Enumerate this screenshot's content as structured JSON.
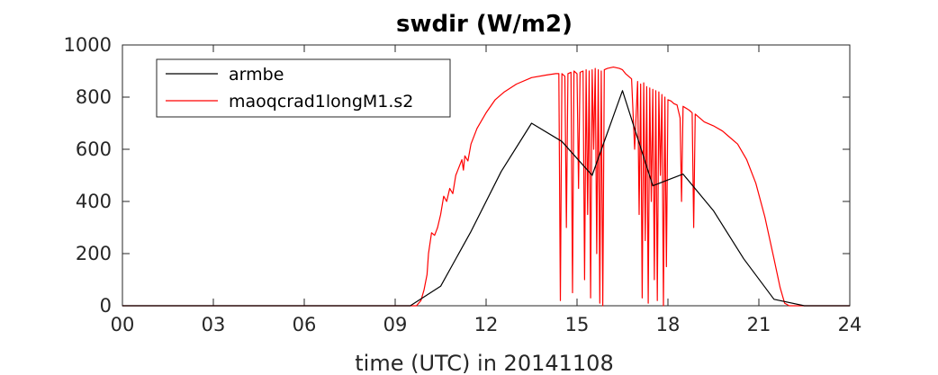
{
  "chart_data": {
    "type": "line",
    "title": "swdir  (W/m2)",
    "xlabel": "time (UTC) in 20141108",
    "ylabel": "",
    "xlim": [
      0,
      24
    ],
    "ylim": [
      0,
      1000
    ],
    "x_ticks": [
      0,
      3,
      6,
      9,
      12,
      15,
      18,
      21,
      24
    ],
    "x_tick_labels": [
      "00",
      "03",
      "06",
      "09",
      "12",
      "15",
      "18",
      "21",
      "24"
    ],
    "y_ticks": [
      0,
      200,
      400,
      600,
      800,
      1000
    ],
    "y_tick_labels": [
      "0",
      "200",
      "400",
      "600",
      "800",
      "1000"
    ],
    "grid": false,
    "legend_position": "top-left",
    "series": [
      {
        "name": "armbe",
        "color": "#000000",
        "points": [
          [
            0,
            0
          ],
          [
            1,
            0
          ],
          [
            2,
            0
          ],
          [
            3,
            0
          ],
          [
            4,
            0
          ],
          [
            5,
            0
          ],
          [
            6,
            0
          ],
          [
            7,
            0
          ],
          [
            8,
            0
          ],
          [
            9,
            0
          ],
          [
            9.5,
            0
          ],
          [
            10.5,
            75
          ],
          [
            11.5,
            285
          ],
          [
            12.5,
            515
          ],
          [
            13.5,
            700
          ],
          [
            14.5,
            630
          ],
          [
            15.5,
            500
          ],
          [
            16.5,
            825
          ],
          [
            17.5,
            460
          ],
          [
            18.5,
            505
          ],
          [
            19.5,
            365
          ],
          [
            20.5,
            180
          ],
          [
            21.5,
            25
          ],
          [
            22.5,
            0
          ],
          [
            23.5,
            0
          ],
          [
            24,
            0
          ]
        ]
      },
      {
        "name": "maoqcrad1longM1.s2",
        "color": "#ff0000",
        "points": [
          [
            0,
            0
          ],
          [
            9.7,
            0
          ],
          [
            9.85,
            20
          ],
          [
            9.95,
            60
          ],
          [
            10.05,
            120
          ],
          [
            10.1,
            200
          ],
          [
            10.2,
            280
          ],
          [
            10.3,
            270
          ],
          [
            10.4,
            300
          ],
          [
            10.5,
            350
          ],
          [
            10.6,
            420
          ],
          [
            10.7,
            400
          ],
          [
            10.8,
            450
          ],
          [
            10.9,
            430
          ],
          [
            11.0,
            500
          ],
          [
            11.1,
            530
          ],
          [
            11.2,
            560
          ],
          [
            11.25,
            520
          ],
          [
            11.3,
            575
          ],
          [
            11.4,
            555
          ],
          [
            11.5,
            620
          ],
          [
            11.7,
            680
          ],
          [
            12.0,
            740
          ],
          [
            12.3,
            790
          ],
          [
            12.6,
            820
          ],
          [
            13.0,
            850
          ],
          [
            13.5,
            875
          ],
          [
            14.0,
            885
          ],
          [
            14.3,
            890
          ],
          [
            14.4,
            890
          ],
          [
            14.45,
            20
          ],
          [
            14.5,
            890
          ],
          [
            14.6,
            880
          ],
          [
            14.65,
            300
          ],
          [
            14.7,
            890
          ],
          [
            14.8,
            895
          ],
          [
            14.85,
            50
          ],
          [
            14.9,
            900
          ],
          [
            15.0,
            890
          ],
          [
            15.05,
            450
          ],
          [
            15.1,
            895
          ],
          [
            15.2,
            900
          ],
          [
            15.25,
            100
          ],
          [
            15.3,
            905
          ],
          [
            15.35,
            350
          ],
          [
            15.4,
            900
          ],
          [
            15.45,
            30
          ],
          [
            15.5,
            905
          ],
          [
            15.55,
            600
          ],
          [
            15.6,
            910
          ],
          [
            15.65,
            200
          ],
          [
            15.7,
            905
          ],
          [
            15.75,
            10
          ],
          [
            15.8,
            900
          ],
          [
            15.85,
            0
          ],
          [
            15.9,
            905
          ],
          [
            16.0,
            910
          ],
          [
            16.2,
            915
          ],
          [
            16.4,
            910
          ],
          [
            16.5,
            905
          ],
          [
            16.6,
            890
          ],
          [
            16.8,
            870
          ],
          [
            16.9,
            600
          ],
          [
            17.0,
            860
          ],
          [
            17.05,
            350
          ],
          [
            17.1,
            850
          ],
          [
            17.15,
            30
          ],
          [
            17.2,
            855
          ],
          [
            17.25,
            250
          ],
          [
            17.3,
            840
          ],
          [
            17.35,
            10
          ],
          [
            17.4,
            835
          ],
          [
            17.45,
            400
          ],
          [
            17.5,
            830
          ],
          [
            17.55,
            100
          ],
          [
            17.6,
            825
          ],
          [
            17.65,
            20
          ],
          [
            17.7,
            820
          ],
          [
            17.75,
            500
          ],
          [
            17.8,
            810
          ],
          [
            17.85,
            0
          ],
          [
            17.9,
            800
          ],
          [
            17.95,
            150
          ],
          [
            18.0,
            790
          ],
          [
            18.1,
            785
          ],
          [
            18.2,
            775
          ],
          [
            18.3,
            770
          ],
          [
            18.4,
            720
          ],
          [
            18.45,
            400
          ],
          [
            18.5,
            765
          ],
          [
            18.7,
            750
          ],
          [
            18.8,
            740
          ],
          [
            18.85,
            300
          ],
          [
            18.9,
            735
          ],
          [
            19.0,
            725
          ],
          [
            19.2,
            705
          ],
          [
            19.5,
            690
          ],
          [
            19.8,
            670
          ],
          [
            20.0,
            650
          ],
          [
            20.3,
            620
          ],
          [
            20.6,
            560
          ],
          [
            20.9,
            470
          ],
          [
            21.2,
            340
          ],
          [
            21.5,
            180
          ],
          [
            21.7,
            70
          ],
          [
            21.85,
            10
          ],
          [
            22.0,
            0
          ],
          [
            24,
            0
          ]
        ]
      }
    ]
  }
}
